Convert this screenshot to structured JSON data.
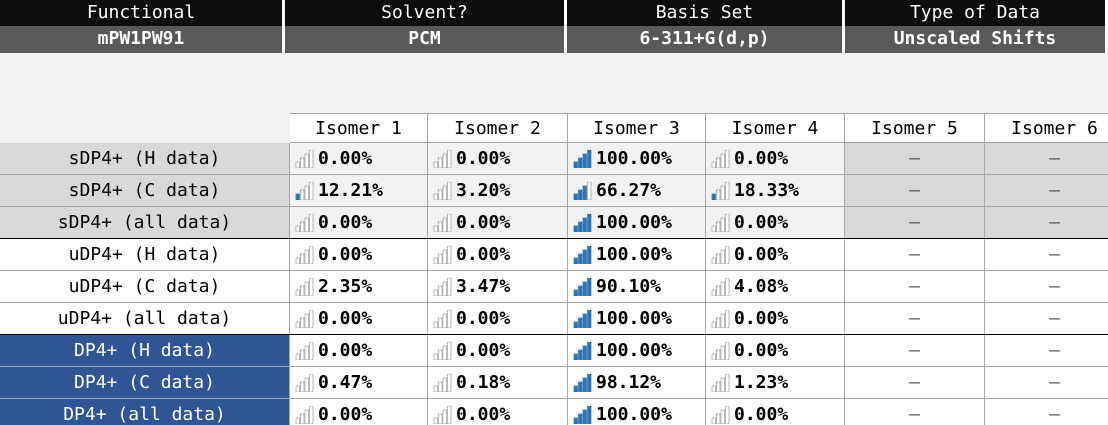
{
  "header": {
    "columns": [
      {
        "label": "Functional",
        "value": "mPW1PW91"
      },
      {
        "label": "Solvent?",
        "value": "PCM"
      },
      {
        "label": "Basis Set",
        "value": "6-311+G(d,p)"
      },
      {
        "label": "Type of Data",
        "value": "Unscaled Shifts"
      }
    ]
  },
  "table": {
    "columns": [
      "Isomer 1",
      "Isomer 2",
      "Isomer 3",
      "Isomer 4",
      "Isomer 5",
      "Isomer 6"
    ],
    "rows": [
      {
        "label": "sDP4+ (H data)",
        "cells": [
          "0.00%",
          "0.00%",
          "100.00%",
          "0.00%",
          "–",
          "–"
        ]
      },
      {
        "label": "sDP4+ (C data)",
        "cells": [
          "12.21%",
          "3.20%",
          "66.27%",
          "18.33%",
          "–",
          "–"
        ]
      },
      {
        "label": "sDP4+ (all data)",
        "cells": [
          "0.00%",
          "0.00%",
          "100.00%",
          "0.00%",
          "–",
          "–"
        ]
      },
      {
        "label": "uDP4+ (H data)",
        "cells": [
          "0.00%",
          "0.00%",
          "100.00%",
          "0.00%",
          "–",
          "–"
        ]
      },
      {
        "label": "uDP4+ (C data)",
        "cells": [
          "2.35%",
          "3.47%",
          "90.10%",
          "4.08%",
          "–",
          "–"
        ]
      },
      {
        "label": "uDP4+ (all data)",
        "cells": [
          "0.00%",
          "0.00%",
          "100.00%",
          "0.00%",
          "–",
          "–"
        ]
      },
      {
        "label": "DP4+ (H data)",
        "cells": [
          "0.00%",
          "0.00%",
          "100.00%",
          "0.00%",
          "–",
          "–"
        ]
      },
      {
        "label": "DP4+ (C data)",
        "cells": [
          "0.47%",
          "0.18%",
          "98.12%",
          "1.23%",
          "–",
          "–"
        ]
      },
      {
        "label": "DP4+ (all data)",
        "cells": [
          "0.00%",
          "0.00%",
          "100.00%",
          "0.00%",
          "–",
          "–"
        ]
      }
    ]
  }
}
